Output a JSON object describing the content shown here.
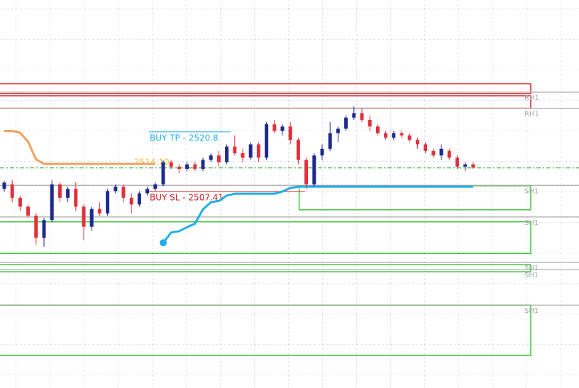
{
  "chart_data": {
    "type": "candlestick",
    "ylim": [
      2463.3,
      2550.4
    ],
    "bull_color": "#1e2a8c",
    "bear_color": "#e0303c",
    "candles": [
      [
        2508.0,
        2509.8,
        2507.4,
        2509.4
      ],
      [
        2509.0,
        2510.0,
        2505.0,
        2506.0
      ],
      [
        2506.0,
        2506.5,
        2503.0,
        2504.0
      ],
      [
        2504.0,
        2504.5,
        2501.5,
        2502.0
      ],
      [
        2502.0,
        2502.5,
        2495.5,
        2497.0
      ],
      [
        2497.0,
        2501.5,
        2495.0,
        2501.0
      ],
      [
        2501.0,
        2510.0,
        2500.5,
        2509.0
      ],
      [
        2509.0,
        2509.5,
        2505.0,
        2506.0
      ],
      [
        2506.0,
        2508.5,
        2505.0,
        2508.0
      ],
      [
        2508.0,
        2509.5,
        2503.0,
        2504.0
      ],
      [
        2504.0,
        2504.5,
        2496.5,
        2499.5
      ],
      [
        2499.5,
        2504.0,
        2498.5,
        2503.5
      ],
      [
        2503.5,
        2505.0,
        2502.0,
        2502.5
      ],
      [
        2502.5,
        2508.0,
        2502.0,
        2507.5
      ],
      [
        2507.5,
        2509.0,
        2507.0,
        2508.5
      ],
      [
        2508.5,
        2509.0,
        2505.0,
        2506.0
      ],
      [
        2506.0,
        2507.0,
        2502.5,
        2504.5
      ],
      [
        2504.5,
        2507.5,
        2504.0,
        2507.0
      ],
      [
        2507.0,
        2508.5,
        2506.5,
        2508.0
      ],
      [
        2508.0,
        2509.5,
        2507.5,
        2509.0
      ],
      [
        2509.0,
        2514.5,
        2508.5,
        2514.0
      ],
      [
        2514.0,
        2514.5,
        2512.5,
        2513.0
      ],
      [
        2513.0,
        2513.5,
        2511.5,
        2512.5
      ],
      [
        2512.5,
        2514.0,
        2512.0,
        2513.5
      ],
      [
        2513.5,
        2514.0,
        2512.0,
        2512.5
      ],
      [
        2512.5,
        2515.0,
        2512.0,
        2514.5
      ],
      [
        2514.5,
        2516.0,
        2514.0,
        2515.5
      ],
      [
        2515.5,
        2516.5,
        2513.0,
        2514.0
      ],
      [
        2514.0,
        2518.0,
        2513.5,
        2517.5
      ],
      [
        2517.5,
        2520.0,
        2515.5,
        2516.0
      ],
      [
        2516.0,
        2517.0,
        2514.0,
        2515.0
      ],
      [
        2515.0,
        2518.5,
        2514.5,
        2518.0
      ],
      [
        2518.0,
        2518.5,
        2514.0,
        2515.0
      ],
      [
        2515.0,
        2523.0,
        2514.5,
        2522.5
      ],
      [
        2522.5,
        2523.5,
        2520.5,
        2521.0
      ],
      [
        2521.0,
        2522.5,
        2520.0,
        2522.0
      ],
      [
        2522.0,
        2523.0,
        2518.0,
        2519.0
      ],
      [
        2519.0,
        2519.5,
        2513.5,
        2514.5
      ],
      [
        2514.5,
        2515.0,
        2508.0,
        2509.0
      ],
      [
        2509.0,
        2516.0,
        2508.5,
        2515.5
      ],
      [
        2515.5,
        2518.0,
        2514.5,
        2517.0
      ],
      [
        2517.0,
        2523.0,
        2516.5,
        2520.5
      ],
      [
        2520.5,
        2522.0,
        2518.5,
        2521.5
      ],
      [
        2521.5,
        2524.5,
        2521.0,
        2524.0
      ],
      [
        2524.0,
        2526.5,
        2523.5,
        2525.0
      ],
      [
        2525.0,
        2526.0,
        2523.0,
        2523.5
      ],
      [
        2523.5,
        2524.5,
        2521.0,
        2522.0
      ],
      [
        2522.0,
        2522.5,
        2520.0,
        2520.5
      ],
      [
        2520.5,
        2521.0,
        2519.0,
        2519.5
      ],
      [
        2519.5,
        2521.0,
        2519.0,
        2520.5
      ],
      [
        2520.5,
        2521.0,
        2519.5,
        2520.0
      ],
      [
        2520.0,
        2520.5,
        2518.5,
        2519.0
      ],
      [
        2519.0,
        2519.5,
        2517.0,
        2518.0
      ],
      [
        2518.0,
        2518.5,
        2516.0,
        2516.5
      ],
      [
        2516.5,
        2517.0,
        2515.0,
        2515.5
      ],
      [
        2515.5,
        2518.0,
        2514.5,
        2517.0
      ],
      [
        2516.5,
        2517.0,
        2514.5,
        2515.0
      ],
      [
        2515.0,
        2515.5,
        2512.5,
        2513.0
      ],
      [
        2513.0,
        2514.0,
        2512.0,
        2513.5
      ],
      [
        2513.5,
        2514.0,
        2512.5,
        2512.8
      ]
    ],
    "series": [
      {
        "color": "#f0a060",
        "values": [
          2521.0,
          2521.0,
          2520.6,
          2518.6,
          2514.6,
          2513.6,
          2513.6,
          2513.6,
          2513.6,
          2513.6,
          2513.6,
          2513.6,
          2513.6,
          2513.6,
          2513.6,
          2513.6,
          2513.6,
          2513.6,
          2513.6,
          2513.6,
          null,
          null,
          null,
          null,
          null,
          null,
          null,
          null,
          null,
          null,
          null,
          null,
          null,
          null,
          null,
          null,
          null,
          null,
          null,
          null,
          null,
          null,
          null,
          null,
          null,
          null,
          null,
          null,
          null,
          null,
          null,
          null,
          null,
          null,
          null,
          null,
          null,
          null,
          null,
          null
        ]
      },
      {
        "color": "#1eaee8",
        "values": [
          null,
          null,
          null,
          null,
          null,
          null,
          null,
          null,
          null,
          null,
          null,
          null,
          null,
          null,
          null,
          null,
          null,
          null,
          null,
          null,
          2495.9,
          2498.2,
          2498.5,
          2499.4,
          2500.2,
          2503.4,
          2505.0,
          2505.3,
          2506.5,
          2506.9,
          2506.9,
          2506.9,
          2506.9,
          2506.9,
          2506.9,
          2507.4,
          2508.2,
          2508.5,
          2508.5,
          2508.5,
          2508.5,
          2508.5,
          2508.5,
          2508.5,
          2508.5,
          2508.5,
          2508.5,
          2508.5,
          2508.5,
          2508.5,
          2508.5,
          2508.5,
          2508.5,
          2508.5,
          2508.5,
          2508.5,
          2508.5,
          2508.5,
          2508.5,
          2508.5
        ]
      }
    ],
    "zones": [
      {
        "color": "#e0202a",
        "top": 2531.6,
        "bottom": 2529.4,
        "start": 0
      },
      {
        "color": "#e0202a",
        "top": 2528.9,
        "bottom": 2526.1,
        "start": 0
      },
      {
        "color": "#3cc83c",
        "top": 2508.7,
        "bottom": 2503.3,
        "start": 38
      },
      {
        "color": "#3cc83c",
        "top": 2500.6,
        "bottom": 2493.5,
        "start": 0
      },
      {
        "color": "#3cc83c",
        "top": 2491.0,
        "bottom": 2489.4,
        "start": 0
      },
      {
        "color": "#3cc83c",
        "top": 2481.9,
        "bottom": 2470.6,
        "start": 0
      }
    ],
    "levels": [
      {
        "label": "RH1",
        "value": 2529.7
      },
      {
        "label": "RH1",
        "value": 2526.1
      },
      {
        "label": "SH1",
        "value": 2508.8
      },
      {
        "label": "SH1",
        "value": 2501.7
      },
      {
        "label": "SH1",
        "value": 2491.5
      },
      {
        "label": "SH1",
        "value": 2489.9
      },
      {
        "label": "SH1",
        "value": 2481.9
      }
    ],
    "current_price": {
      "value": 2512.7,
      "color": "#2a9a2a"
    },
    "annotations": [
      {
        "text": "BUY TP - 2520.8",
        "value": 2520.8,
        "color": "#1eaee8"
      },
      {
        "text": "BUY SL - 2507.41",
        "value": 2507.41,
        "color": "#d02020"
      },
      {
        "text": "2514.10",
        "value": 2514.1,
        "color": "#e8c040"
      }
    ]
  }
}
